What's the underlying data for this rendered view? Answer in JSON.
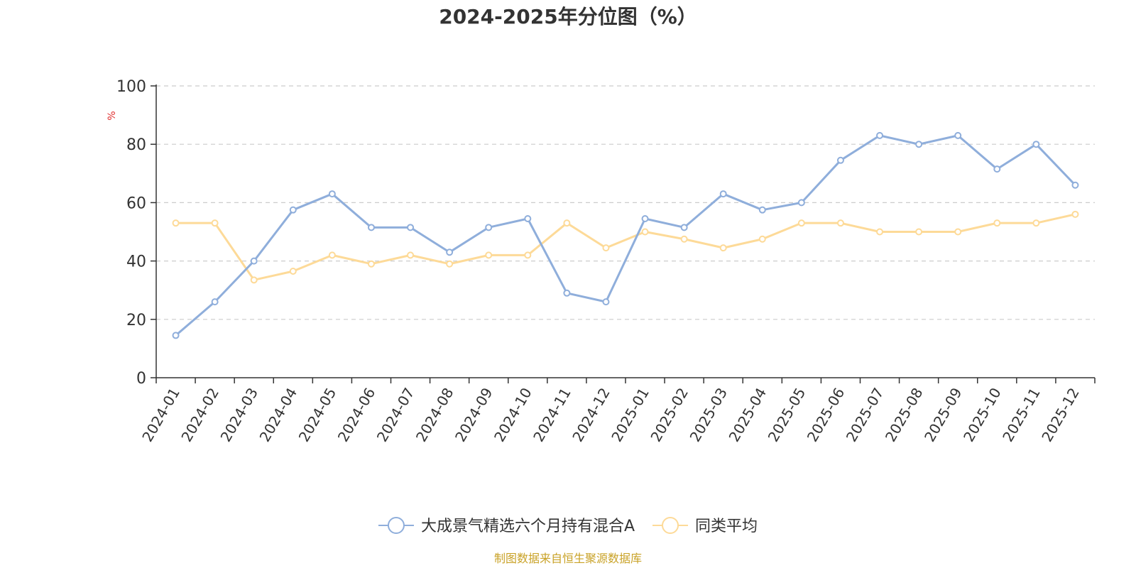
{
  "chart_data": {
    "type": "line",
    "title": "2024-2025年分位图（%）",
    "ylabel": "%",
    "xlabel": "",
    "ylim": [
      0,
      100
    ],
    "yticks": [
      0,
      20,
      40,
      60,
      80,
      100
    ],
    "grid": true,
    "categories": [
      "2024-01",
      "2024-02",
      "2024-03",
      "2024-04",
      "2024-05",
      "2024-06",
      "2024-07",
      "2024-08",
      "2024-09",
      "2024-10",
      "2024-11",
      "2024-12",
      "2025-01",
      "2025-02",
      "2025-03",
      "2025-04",
      "2025-05",
      "2025-06",
      "2025-07",
      "2025-08",
      "2025-09",
      "2025-10",
      "2025-11",
      "2025-12"
    ],
    "series": [
      {
        "name": "大成景气精选六个月持有混合A",
        "color": "#8FAEDB",
        "values": [
          14.5,
          26,
          40,
          57.5,
          63,
          51.5,
          51.5,
          43,
          51.5,
          54.5,
          29,
          26,
          54.5,
          51.5,
          63,
          57.5,
          60,
          74.5,
          83,
          80,
          83,
          71.5,
          80,
          66
        ]
      },
      {
        "name": "同类平均",
        "color": "#FDDA98",
        "values": [
          53,
          53,
          33.5,
          36.5,
          42,
          39,
          42,
          39,
          42,
          42,
          53,
          44.5,
          50,
          47.5,
          44.5,
          47.5,
          53,
          53,
          50,
          50,
          50,
          53,
          53,
          56
        ]
      }
    ],
    "legend_position": "bottom-center",
    "unit_color": "#E03030"
  },
  "source": {
    "text": "制图数据来自恒生聚源数据库",
    "color": "#C9A227"
  }
}
